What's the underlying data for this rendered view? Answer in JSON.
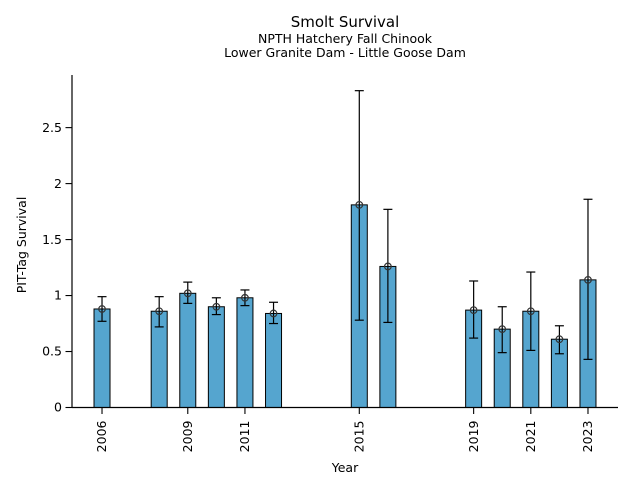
{
  "chart_data": {
    "type": "bar",
    "title": "Smolt Survival",
    "subtitle1": "NPTH Hatchery Fall Chinook",
    "subtitle2": "Lower Granite Dam - Little Goose Dam",
    "xlabel": "Year",
    "ylabel": "PIT-Tag Survival",
    "years": [
      2006,
      2008,
      2009,
      2010,
      2011,
      2012,
      2015,
      2016,
      2019,
      2020,
      2021,
      2022,
      2023
    ],
    "survival": [
      0.88,
      0.86,
      1.02,
      0.9,
      0.98,
      0.84,
      1.81,
      1.26,
      0.87,
      0.7,
      0.86,
      0.61,
      1.14
    ],
    "ci_low": [
      0.77,
      0.72,
      0.93,
      0.83,
      0.91,
      0.75,
      0.78,
      0.76,
      0.62,
      0.49,
      0.51,
      0.48,
      0.43
    ],
    "ci_high": [
      0.99,
      0.99,
      1.12,
      0.98,
      1.05,
      0.94,
      2.83,
      1.77,
      1.13,
      0.9,
      1.21,
      0.73,
      1.86
    ],
    "xticks": [
      2006,
      2009,
      2011,
      2015,
      2019,
      2021,
      2023
    ],
    "xtick_labels": [
      "2006",
      "2009",
      "2011",
      "2015",
      "2019",
      "2021",
      "2023"
    ],
    "yticks": [
      0,
      0.5,
      1,
      1.5,
      2,
      2.5
    ],
    "ytick_labels": [
      "0",
      "0.5",
      "1",
      "1.5",
      "2",
      "2.5"
    ],
    "xlim": [
      2004.95,
      2024.05
    ],
    "ylim": [
      0,
      2.97
    ],
    "bar_color": "#55a5cf",
    "bar_edge_color": "#000000",
    "error_bar_color": "#000000",
    "marker": "open-circle",
    "grid": false,
    "legend": null,
    "background": "#ffffff"
  }
}
